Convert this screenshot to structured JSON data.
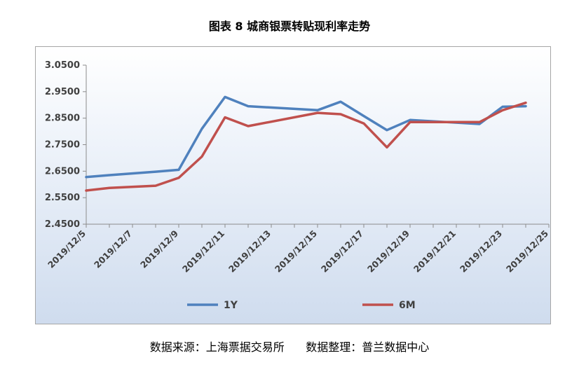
{
  "title": "图表 8  城商银票转贴现利率走势",
  "source_note": "数据来源：上海票据交易所      数据整理：普兰数据中心",
  "chart_data": {
    "type": "line",
    "x": [
      "2019/12/5",
      "2019/12/6",
      "2019/12/9",
      "2019/12/10",
      "2019/12/11",
      "2019/12/12",
      "2019/12/13",
      "2019/12/16",
      "2019/12/17",
      "2019/12/18",
      "2019/12/19",
      "2019/12/20",
      "2019/12/23",
      "2019/12/24",
      "2019/12/25"
    ],
    "x_tick_labels": [
      "2019/12/5",
      "2019/12/7",
      "2019/12/9",
      "2019/12/11",
      "2019/12/13",
      "2019/12/15",
      "2019/12/17",
      "2019/12/19",
      "2019/12/21",
      "2019/12/23",
      "2019/12/25"
    ],
    "y_ticks": [
      "3.0500",
      "2.9500",
      "2.8500",
      "2.7500",
      "2.6500",
      "2.5500",
      "2.4500"
    ],
    "ylim": [
      2.45,
      3.05
    ],
    "series": [
      {
        "name": "1Y",
        "color": "#4f81bd",
        "values": [
          2.628,
          2.635,
          2.648,
          2.655,
          2.81,
          2.93,
          2.895,
          2.88,
          2.912,
          2.858,
          2.805,
          2.843,
          2.828,
          2.893,
          2.895
        ]
      },
      {
        "name": "6M",
        "color": "#c0504d",
        "values": [
          2.577,
          2.587,
          2.595,
          2.625,
          2.705,
          2.853,
          2.82,
          2.87,
          2.865,
          2.83,
          2.74,
          2.835,
          2.835,
          2.88,
          2.908
        ]
      }
    ],
    "x_index_positions": [
      0,
      1,
      3,
      4,
      5,
      6,
      7,
      10,
      11,
      12,
      13,
      14,
      17,
      18,
      19
    ],
    "x_index_range": [
      0,
      20
    ],
    "legend_position": "bottom",
    "grid": false
  }
}
